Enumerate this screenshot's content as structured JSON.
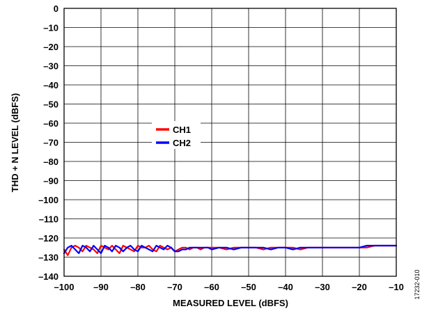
{
  "chart_data": {
    "type": "line",
    "title": "",
    "xlabel": "MEASURED LEVEL (dBFS)",
    "ylabel": "THD + N LEVEL (dBFS)",
    "xlim": [
      -100,
      -10
    ],
    "ylim": [
      -140,
      0
    ],
    "x_ticks": [
      "–100",
      "–90",
      "–80",
      "–70",
      "–60",
      "–50",
      "–40",
      "–30",
      "–20",
      "–10"
    ],
    "y_ticks": [
      "0",
      "–10",
      "–20",
      "–30",
      "–40",
      "–50",
      "–60",
      "–70",
      "–80",
      "–90",
      "–100",
      "–110",
      "–120",
      "–130",
      "–140"
    ],
    "grid": true,
    "legend_position": "center-left",
    "series": [
      {
        "name": "CH1",
        "color": "#ff0000",
        "x": [
          -100,
          -99,
          -98,
          -97,
          -96,
          -95,
          -94,
          -93,
          -92,
          -91,
          -90,
          -89,
          -88,
          -87,
          -86,
          -85,
          -84,
          -83,
          -82,
          -81,
          -80,
          -79,
          -78,
          -77,
          -76,
          -75,
          -74,
          -73,
          -72,
          -71,
          -70,
          -69,
          -68,
          -67,
          -66,
          -65,
          -64,
          -63,
          -62,
          -61,
          -60,
          -58,
          -56,
          -54,
          -52,
          -50,
          -48,
          -46,
          -44,
          -42,
          -40,
          -38,
          -36,
          -34,
          -32,
          -30,
          -28,
          -26,
          -24,
          -22,
          -20,
          -18,
          -16,
          -14,
          -12,
          -10
        ],
        "values": [
          -126,
          -129,
          -125,
          -124,
          -125,
          -127,
          -124,
          -125,
          -126,
          -128,
          -124,
          -125,
          -126,
          -124,
          -126,
          -128,
          -124,
          -125,
          -126,
          -127,
          -124,
          -125,
          -125,
          -124,
          -126,
          -127,
          -124,
          -125,
          -126,
          -125,
          -127,
          -126,
          -125,
          -125,
          -126,
          -125,
          -125,
          -126,
          -125,
          -125,
          -125,
          -125,
          -126,
          -125,
          -125,
          -125,
          -125,
          -126,
          -125,
          -125,
          -125,
          -125,
          -126,
          -125,
          -125,
          -125,
          -125,
          -125,
          -125,
          -125,
          -125,
          -125,
          -124,
          -124,
          -124,
          -124
        ]
      },
      {
        "name": "CH2",
        "color": "#0000ff",
        "x": [
          -100,
          -99,
          -98,
          -97,
          -96,
          -95,
          -94,
          -93,
          -92,
          -91,
          -90,
          -89,
          -88,
          -87,
          -86,
          -85,
          -84,
          -83,
          -82,
          -81,
          -80,
          -79,
          -78,
          -77,
          -76,
          -75,
          -74,
          -73,
          -72,
          -71,
          -70,
          -69,
          -68,
          -67,
          -66,
          -65,
          -64,
          -63,
          -62,
          -61,
          -60,
          -58,
          -56,
          -54,
          -52,
          -50,
          -48,
          -46,
          -44,
          -42,
          -40,
          -38,
          -36,
          -34,
          -32,
          -30,
          -28,
          -26,
          -24,
          -22,
          -20,
          -18,
          -16,
          -14,
          -12,
          -10
        ],
        "values": [
          -128,
          -125,
          -124,
          -126,
          -128,
          -124,
          -125,
          -127,
          -124,
          -126,
          -128,
          -124,
          -125,
          -127,
          -124,
          -125,
          -127,
          -125,
          -124,
          -126,
          -127,
          -124,
          -125,
          -126,
          -127,
          -124,
          -125,
          -126,
          -124,
          -125,
          -127,
          -127,
          -126,
          -126,
          -125,
          -125,
          -125,
          -125,
          -125,
          -125,
          -126,
          -125,
          -125,
          -126,
          -125,
          -125,
          -125,
          -125,
          -126,
          -125,
          -125,
          -126,
          -125,
          -125,
          -125,
          -125,
          -125,
          -125,
          -125,
          -125,
          -125,
          -124,
          -124,
          -124,
          -124,
          -124
        ]
      }
    ]
  },
  "figure_id": "17232-010"
}
